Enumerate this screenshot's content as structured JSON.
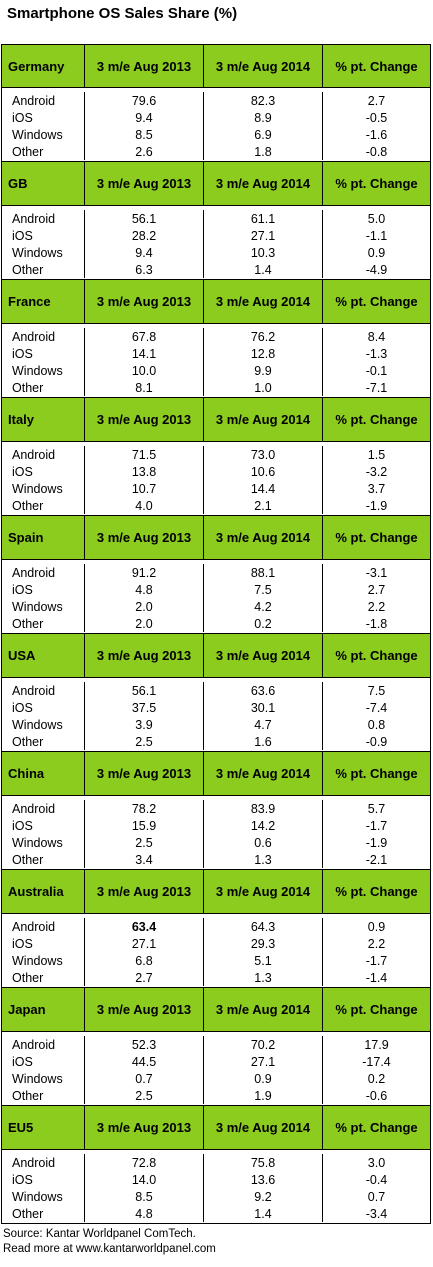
{
  "chart_data": {
    "type": "table",
    "title": "Smartphone OS Sales Share (%)",
    "columns": [
      "3 m/e Aug 2013",
      "3 m/e Aug 2014",
      "% pt. Change"
    ],
    "regions": [
      {
        "name": "Germany",
        "rows": [
          {
            "os": "Android",
            "v2013": "79.6",
            "v2014": "82.3",
            "change": "2.7"
          },
          {
            "os": "iOS",
            "v2013": "9.4",
            "v2014": "8.9",
            "change": "-0.5"
          },
          {
            "os": "Windows",
            "v2013": "8.5",
            "v2014": "6.9",
            "change": "-1.6"
          },
          {
            "os": "Other",
            "v2013": "2.6",
            "v2014": "1.8",
            "change": "-0.8"
          }
        ]
      },
      {
        "name": "GB",
        "rows": [
          {
            "os": "Android",
            "v2013": "56.1",
            "v2014": "61.1",
            "change": "5.0"
          },
          {
            "os": "iOS",
            "v2013": "28.2",
            "v2014": "27.1",
            "change": "-1.1"
          },
          {
            "os": "Windows",
            "v2013": "9.4",
            "v2014": "10.3",
            "change": "0.9"
          },
          {
            "os": "Other",
            "v2013": "6.3",
            "v2014": "1.4",
            "change": "-4.9"
          }
        ]
      },
      {
        "name": "France",
        "rows": [
          {
            "os": "Android",
            "v2013": "67.8",
            "v2014": "76.2",
            "change": "8.4"
          },
          {
            "os": "iOS",
            "v2013": "14.1",
            "v2014": "12.8",
            "change": "-1.3"
          },
          {
            "os": "Windows",
            "v2013": "10.0",
            "v2014": "9.9",
            "change": "-0.1"
          },
          {
            "os": "Other",
            "v2013": "8.1",
            "v2014": "1.0",
            "change": "-7.1"
          }
        ]
      },
      {
        "name": "Italy",
        "rows": [
          {
            "os": "Android",
            "v2013": "71.5",
            "v2014": "73.0",
            "change": "1.5"
          },
          {
            "os": "iOS",
            "v2013": "13.8",
            "v2014": "10.6",
            "change": "-3.2"
          },
          {
            "os": "Windows",
            "v2013": "10.7",
            "v2014": "14.4",
            "change": "3.7"
          },
          {
            "os": "Other",
            "v2013": "4.0",
            "v2014": "2.1",
            "change": "-1.9"
          }
        ]
      },
      {
        "name": "Spain",
        "rows": [
          {
            "os": "Android",
            "v2013": "91.2",
            "v2014": "88.1",
            "change": "-3.1"
          },
          {
            "os": "iOS",
            "v2013": "4.8",
            "v2014": "7.5",
            "change": "2.7"
          },
          {
            "os": "Windows",
            "v2013": "2.0",
            "v2014": "4.2",
            "change": "2.2"
          },
          {
            "os": "Other",
            "v2013": "2.0",
            "v2014": "0.2",
            "change": "-1.8"
          }
        ]
      },
      {
        "name": "USA",
        "rows": [
          {
            "os": "Android",
            "v2013": "56.1",
            "v2014": "63.6",
            "change": "7.5"
          },
          {
            "os": "iOS",
            "v2013": "37.5",
            "v2014": "30.1",
            "change": "-7.4"
          },
          {
            "os": "Windows",
            "v2013": "3.9",
            "v2014": "4.7",
            "change": "0.8"
          },
          {
            "os": "Other",
            "v2013": "2.5",
            "v2014": "1.6",
            "change": "-0.9"
          }
        ]
      },
      {
        "name": "China",
        "rows": [
          {
            "os": "Android",
            "v2013": "78.2",
            "v2014": "83.9",
            "change": "5.7"
          },
          {
            "os": "iOS",
            "v2013": "15.9",
            "v2014": "14.2",
            "change": "-1.7"
          },
          {
            "os": "Windows",
            "v2013": "2.5",
            "v2014": "0.6",
            "change": "-1.9"
          },
          {
            "os": "Other",
            "v2013": "3.4",
            "v2014": "1.3",
            "change": "-2.1"
          }
        ]
      },
      {
        "name": "Australia",
        "rows": [
          {
            "os": "Android",
            "v2013": "63.4",
            "v2014": "64.3",
            "change": "0.9",
            "bold2013": true
          },
          {
            "os": "iOS",
            "v2013": "27.1",
            "v2014": "29.3",
            "change": "2.2"
          },
          {
            "os": "Windows",
            "v2013": "6.8",
            "v2014": "5.1",
            "change": "-1.7"
          },
          {
            "os": "Other",
            "v2013": "2.7",
            "v2014": "1.3",
            "change": "-1.4"
          }
        ]
      },
      {
        "name": "Japan",
        "rows": [
          {
            "os": "Android",
            "v2013": "52.3",
            "v2014": "70.2",
            "change": "17.9"
          },
          {
            "os": "iOS",
            "v2013": "44.5",
            "v2014": "27.1",
            "change": "-17.4"
          },
          {
            "os": "Windows",
            "v2013": "0.7",
            "v2014": "0.9",
            "change": "0.2"
          },
          {
            "os": "Other",
            "v2013": "2.5",
            "v2014": "1.9",
            "change": "-0.6"
          }
        ]
      },
      {
        "name": "EU5",
        "rows": [
          {
            "os": "Android",
            "v2013": "72.8",
            "v2014": "75.8",
            "change": "3.0"
          },
          {
            "os": "iOS",
            "v2013": "14.0",
            "v2014": "13.6",
            "change": "-0.4"
          },
          {
            "os": "Windows",
            "v2013": "8.5",
            "v2014": "9.2",
            "change": "0.7"
          },
          {
            "os": "Other",
            "v2013": "4.8",
            "v2014": "1.4",
            "change": "-3.4"
          }
        ]
      }
    ]
  },
  "footer": {
    "source": "Source: Kantar Worldpanel ComTech.",
    "more": "Read more at www.kantarworldpanel.com"
  },
  "colors": {
    "header_bg": "#8ccc1f"
  }
}
